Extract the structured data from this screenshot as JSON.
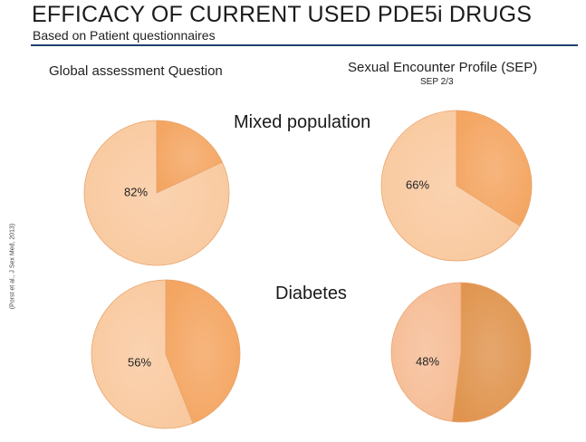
{
  "header": {
    "title": "EFFICACY OF CURRENT USED PDE5i DRUGS",
    "subtitle": "Based on Patient questionnaires"
  },
  "columns": {
    "left_question": "Global assessment Question",
    "right_question": "Sexual Encounter Profile (SEP)",
    "right_sub": "SEP 2/3"
  },
  "rows": {
    "mixed": "Mixed population",
    "diabetes": "Diabetes"
  },
  "citation": "(Porst et al., J Sex Med, 2013)",
  "colors": {
    "light": "#f9c99f",
    "mid": "#f4a561",
    "dark": "#e0944e",
    "light_pink": "#f6bc95",
    "rule": "#1f3f73"
  },
  "chart_data": [
    {
      "type": "pie",
      "column": "Global assessment Question",
      "row": "Mixed population",
      "slices": [
        {
          "value": 82,
          "label": "82%"
        },
        {
          "value": 18
        }
      ],
      "title": "",
      "legend": "none"
    },
    {
      "type": "pie",
      "column": "Sexual Encounter Profile (SEP)",
      "row": "Mixed population",
      "slices": [
        {
          "value": 66,
          "label": "66%"
        },
        {
          "value": 34
        }
      ],
      "title": "",
      "legend": "none"
    },
    {
      "type": "pie",
      "column": "Global assessment Question",
      "row": "Diabetes",
      "slices": [
        {
          "value": 56,
          "label": "56%"
        },
        {
          "value": 44
        }
      ],
      "title": "",
      "legend": "none"
    },
    {
      "type": "pie",
      "column": "Sexual Encounter Profile (SEP)",
      "row": "Diabetes",
      "slices": [
        {
          "value": 48,
          "label": "48%"
        },
        {
          "value": 52
        }
      ],
      "title": "",
      "legend": "none"
    }
  ]
}
